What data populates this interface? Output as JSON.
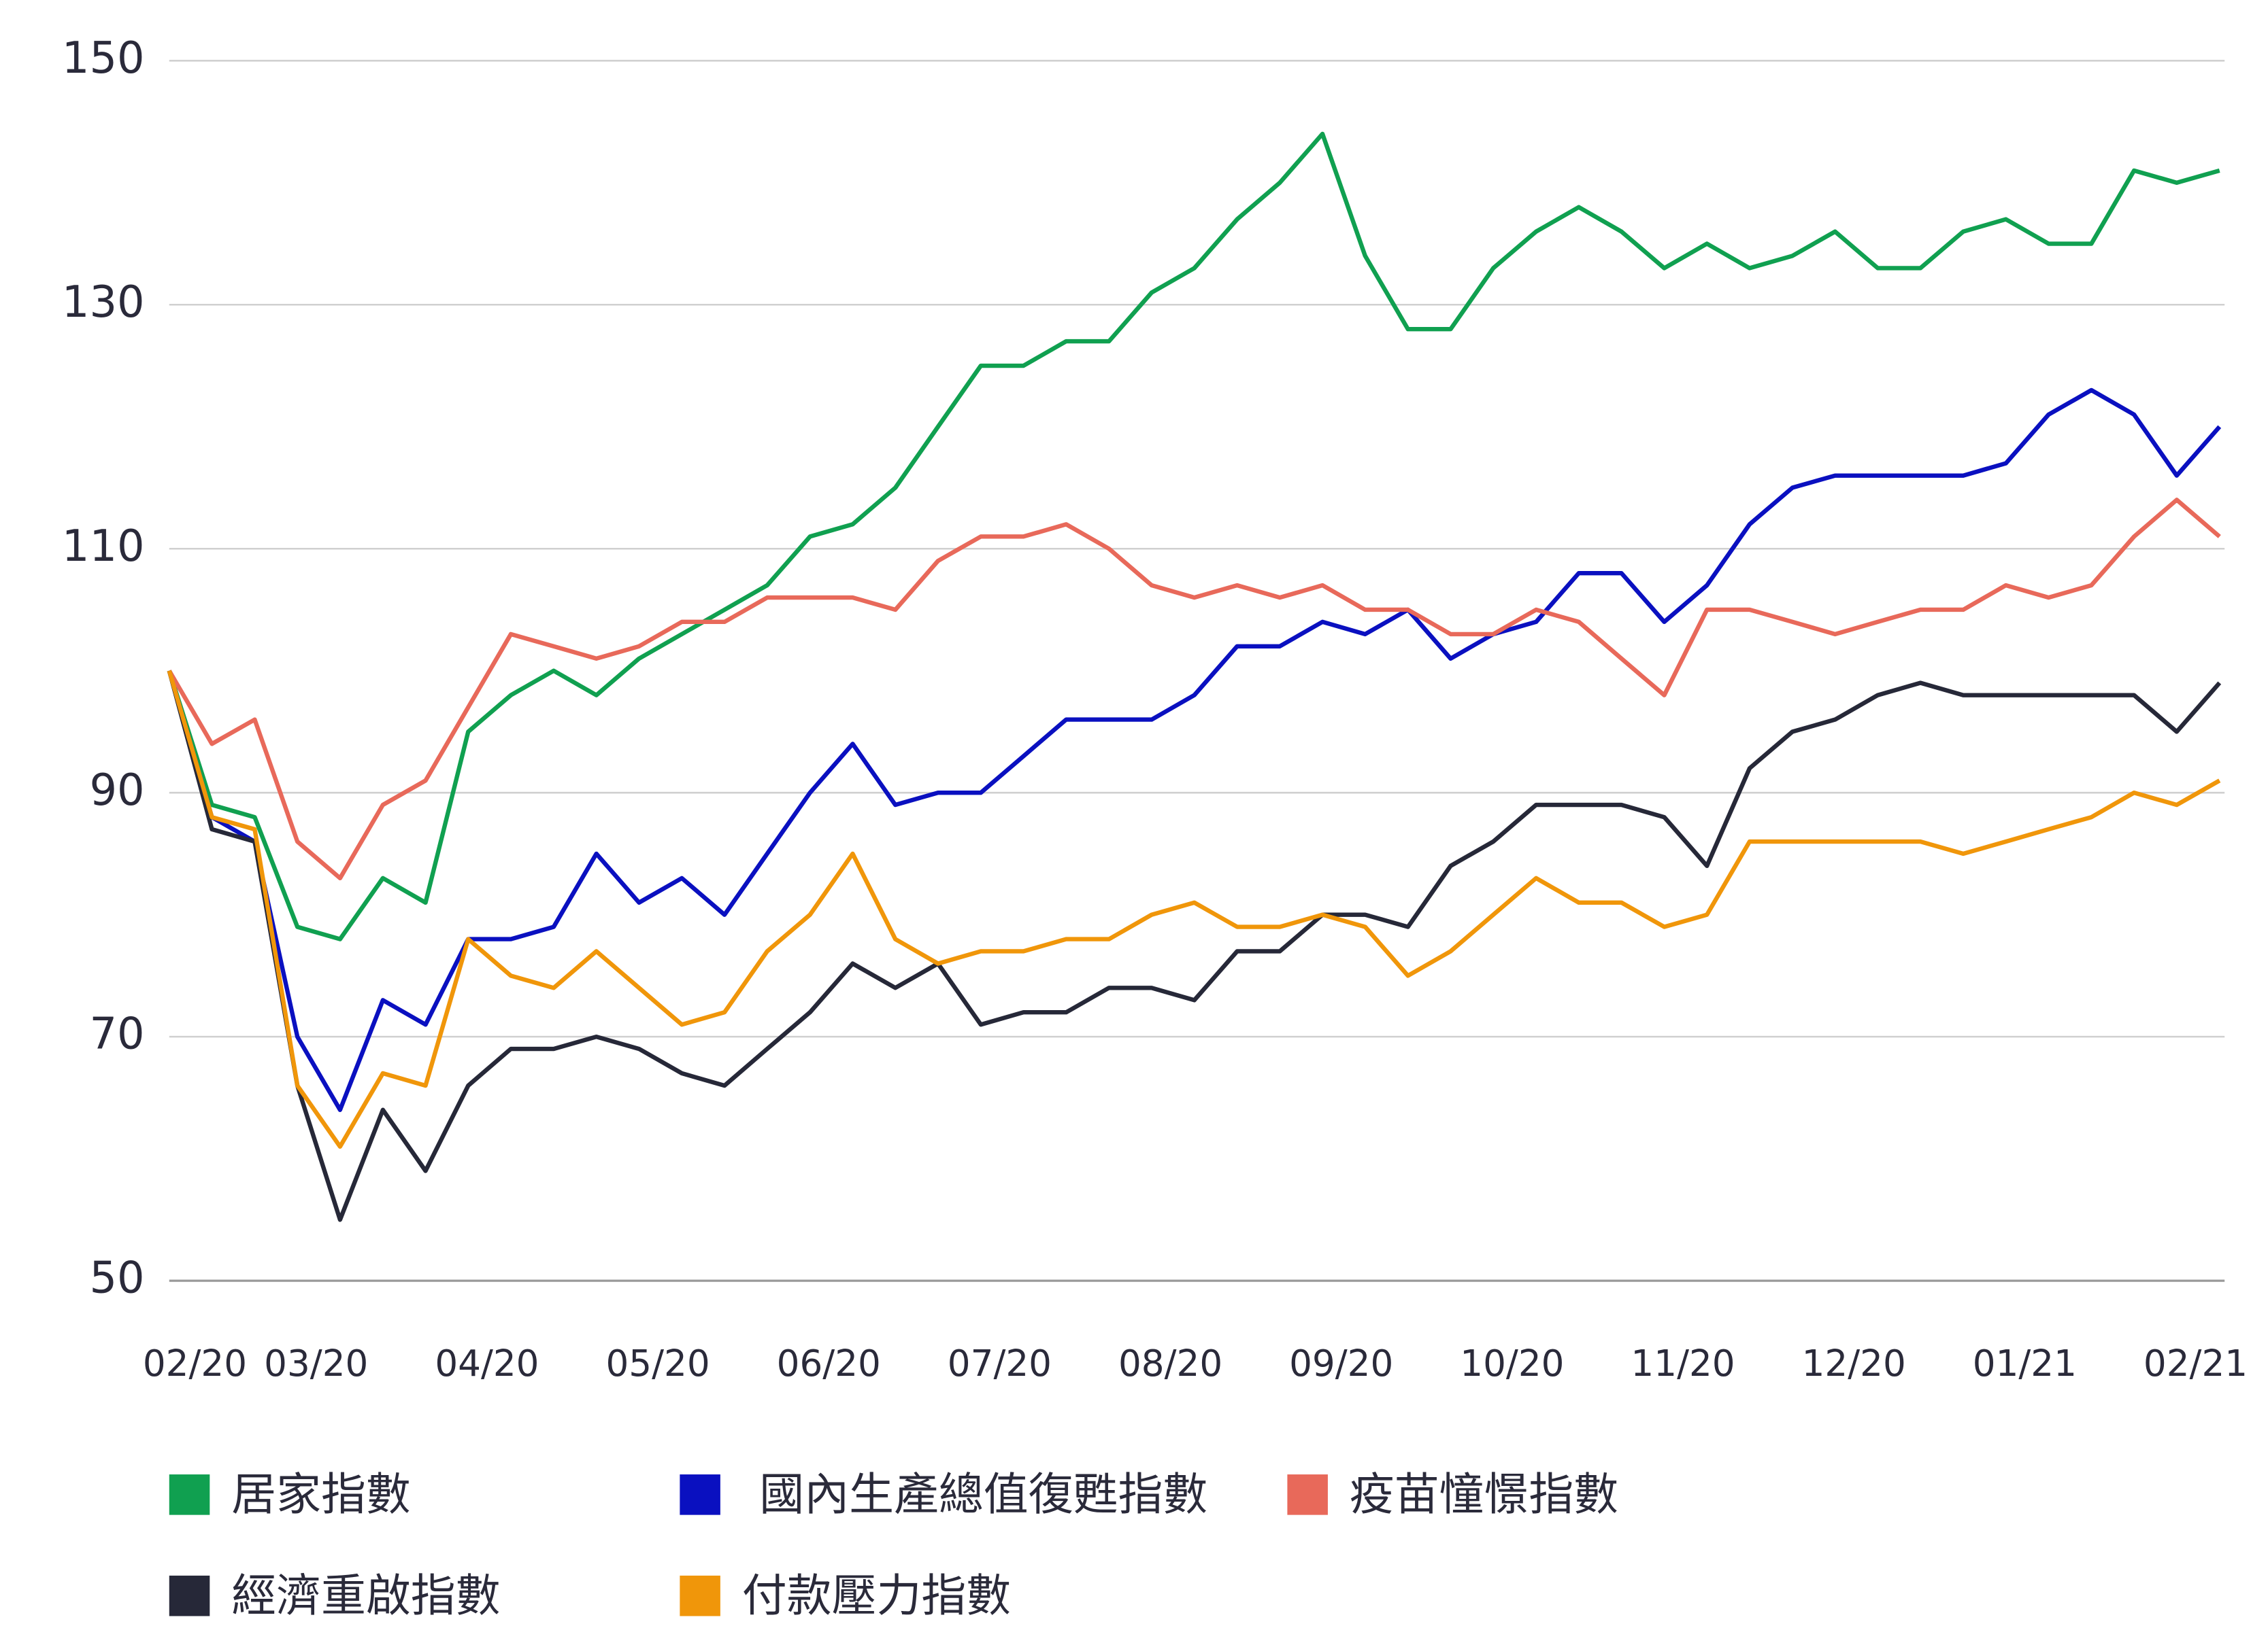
{
  "chart_data": {
    "type": "line",
    "x": [
      0,
      0.25,
      0.5,
      0.75,
      1,
      1.25,
      1.5,
      1.75,
      2,
      2.25,
      2.5,
      2.75,
      3,
      3.25,
      3.5,
      3.75,
      4,
      4.25,
      4.5,
      4.75,
      5,
      5.25,
      5.5,
      5.75,
      6,
      6.25,
      6.5,
      6.75,
      7,
      7.25,
      7.5,
      7.75,
      8,
      8.25,
      8.5,
      8.75,
      9,
      9.25,
      9.5,
      9.75,
      10,
      10.25,
      10.5,
      10.75,
      11,
      11.25,
      11.5,
      11.75,
      12
    ],
    "xlim": [
      0,
      12.03
    ],
    "xticks": [
      {
        "value": 0.15,
        "label": "02/20"
      },
      {
        "value": 0.86,
        "label": "03/20"
      },
      {
        "value": 1.86,
        "label": "04/20"
      },
      {
        "value": 2.86,
        "label": "05/20"
      },
      {
        "value": 3.86,
        "label": "06/20"
      },
      {
        "value": 4.86,
        "label": "07/20"
      },
      {
        "value": 5.86,
        "label": "08/20"
      },
      {
        "value": 6.86,
        "label": "09/20"
      },
      {
        "value": 7.86,
        "label": "10/20"
      },
      {
        "value": 8.86,
        "label": "11/20"
      },
      {
        "value": 9.86,
        "label": "12/20"
      },
      {
        "value": 10.86,
        "label": "01/21"
      },
      {
        "value": 11.86,
        "label": "02/21"
      }
    ],
    "ylim": [
      50,
      150
    ],
    "yticks": [
      50,
      70,
      90,
      110,
      130,
      150
    ],
    "grid": true,
    "legend": "bottom",
    "series": [
      {
        "name": "居家指數",
        "color": "#10a050",
        "values": [
          100,
          89,
          88,
          79,
          78,
          83,
          81,
          95,
          98,
          100,
          98,
          101,
          103,
          105,
          107,
          111,
          112,
          115,
          120,
          125,
          125,
          127,
          127,
          131,
          133,
          137,
          140,
          144,
          134,
          128,
          128,
          133,
          136,
          138,
          136,
          133,
          135,
          133,
          134,
          136,
          133,
          133,
          136,
          137,
          135,
          135,
          141,
          140,
          141
        ]
      },
      {
        "name": "國內生產總值復甦指數",
        "color": "#0a10c0",
        "values": [
          100,
          88,
          86,
          70,
          64,
          73,
          71,
          78,
          78,
          79,
          85,
          81,
          83,
          80,
          85,
          90,
          94,
          89,
          90,
          90,
          93,
          96,
          96,
          96,
          98,
          102,
          102,
          104,
          103,
          105,
          101,
          103,
          104,
          108,
          108,
          104,
          107,
          112,
          115,
          116,
          116,
          116,
          116,
          117,
          121,
          123,
          121,
          116,
          120
        ]
      },
      {
        "name": "疫苗憧憬指數",
        "color": "#e8695a",
        "values": [
          100,
          94,
          96,
          86,
          83,
          89,
          91,
          97,
          103,
          102,
          101,
          102,
          104,
          104,
          106,
          106,
          106,
          105,
          109,
          111,
          111,
          112,
          110,
          107,
          106,
          107,
          106,
          107,
          105,
          105,
          103,
          103,
          105,
          104,
          101,
          98,
          105,
          105,
          104,
          103,
          104,
          105,
          105,
          107,
          106,
          107,
          111,
          114,
          111
        ]
      },
      {
        "name": "經濟重啟指數",
        "color": "#262838",
        "values": [
          100,
          87,
          86,
          66,
          55,
          64,
          59,
          66,
          69,
          69,
          70,
          69,
          67,
          66,
          69,
          72,
          76,
          74,
          76,
          71,
          72,
          72,
          74,
          74,
          73,
          77,
          77,
          80,
          80,
          79,
          84,
          86,
          89,
          89,
          89,
          88,
          84,
          92,
          95,
          96,
          98,
          99,
          98,
          98,
          98,
          98,
          98,
          95,
          99
        ]
      },
      {
        "name": "付款壓力指數",
        "color": "#f0960a",
        "values": [
          100,
          88,
          87,
          66,
          61,
          67,
          66,
          78,
          75,
          74,
          77,
          74,
          71,
          72,
          77,
          80,
          85,
          78,
          76,
          77,
          77,
          78,
          78,
          80,
          81,
          79,
          79,
          80,
          79,
          75,
          77,
          80,
          83,
          81,
          81,
          79,
          80,
          86,
          86,
          86,
          86,
          86,
          85,
          86,
          87,
          88,
          90,
          89,
          91
        ]
      }
    ]
  }
}
